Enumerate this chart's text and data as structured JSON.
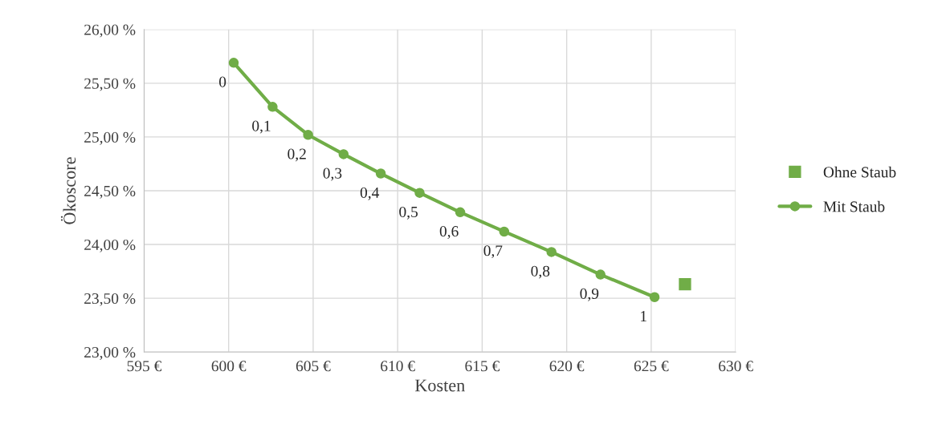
{
  "chart_data": {
    "type": "scatter",
    "xlabel": "Kosten",
    "ylabel": "Ökoscore",
    "series": [
      {
        "name": "Ohne Staub",
        "marker": "square",
        "color": "#70ad47",
        "x": [
          627.0
        ],
        "values": [
          23.63
        ]
      },
      {
        "name": "Mit Staub",
        "type": "line",
        "marker": "circle",
        "color": "#70ad47",
        "x": [
          600.3,
          602.6,
          604.7,
          606.8,
          609.0,
          611.3,
          613.7,
          616.3,
          619.1,
          622.0,
          625.2
        ],
        "values": [
          25.69,
          25.28,
          25.02,
          24.84,
          24.66,
          24.48,
          24.3,
          24.12,
          23.93,
          23.72,
          23.51
        ]
      }
    ],
    "annotations": [
      {
        "text": "0",
        "x": 600.3,
        "y": 25.69
      },
      {
        "text": "0,1",
        "x": 602.6,
        "y": 25.28
      },
      {
        "text": "0,2",
        "x": 604.7,
        "y": 25.02
      },
      {
        "text": "0,3",
        "x": 606.8,
        "y": 24.84
      },
      {
        "text": "0,4",
        "x": 609.0,
        "y": 24.66
      },
      {
        "text": "0,5",
        "x": 611.3,
        "y": 24.48
      },
      {
        "text": "0,6",
        "x": 613.7,
        "y": 24.3
      },
      {
        "text": "0,7",
        "x": 616.3,
        "y": 24.12
      },
      {
        "text": "0,8",
        "x": 619.1,
        "y": 23.93
      },
      {
        "text": "0,9",
        "x": 622.0,
        "y": 23.72
      },
      {
        "text": "1",
        "x": 625.2,
        "y": 23.51
      }
    ],
    "xlim": [
      595,
      630
    ],
    "xticks": [
      {
        "value": 595,
        "label": "595 €"
      },
      {
        "value": 600,
        "label": "600 €"
      },
      {
        "value": 605,
        "label": "605 €"
      },
      {
        "value": 610,
        "label": "610 €"
      },
      {
        "value": 615,
        "label": "615 €"
      },
      {
        "value": 620,
        "label": "620 €"
      },
      {
        "value": 625,
        "label": "625 €"
      },
      {
        "value": 630,
        "label": "630 €"
      }
    ],
    "ylim": [
      23.0,
      26.0
    ],
    "yticks": [
      {
        "value": 23.0,
        "label": "23,00 %"
      },
      {
        "value": 23.5,
        "label": "23,50 %"
      },
      {
        "value": 24.0,
        "label": "24,00 %"
      },
      {
        "value": 24.5,
        "label": "24,50 %"
      },
      {
        "value": 25.0,
        "label": "25,00 %"
      },
      {
        "value": 25.5,
        "label": "25,50 %"
      },
      {
        "value": 26.0,
        "label": "26,00 %"
      }
    ],
    "grid": true,
    "legend": "right"
  }
}
